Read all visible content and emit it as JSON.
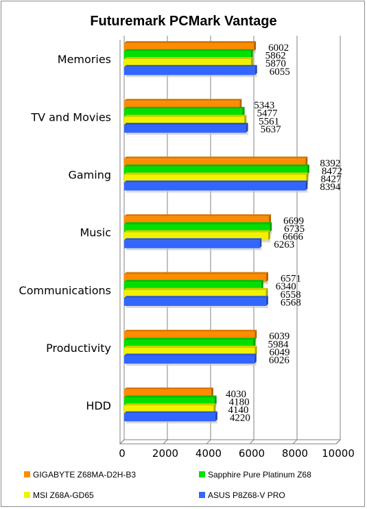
{
  "chart_data": {
    "type": "bar",
    "orientation": "horizontal",
    "title": "Futuremark PCMark Vantage",
    "xlim": [
      0,
      10000
    ],
    "x_ticks": [
      "0",
      "2000",
      "4000",
      "6000",
      "8000",
      "10000"
    ],
    "grid": true,
    "legend_position": "bottom",
    "categories": [
      "Memories",
      "TV and Movies",
      "Gaming",
      "Music",
      "Communications",
      "Productivity",
      "HDD"
    ],
    "series": [
      {
        "name": "GIGABYTE Z68MA-D2H-B3",
        "color": "#ff8c00",
        "values": [
          6002,
          5343,
          8392,
          6699,
          6571,
          6039,
          4030
        ]
      },
      {
        "name": "Sapphire Pure Platinum Z68",
        "color": "#00e000",
        "values": [
          5862,
          5477,
          8472,
          6735,
          6340,
          5984,
          4180
        ]
      },
      {
        "name": "MSI Z68A-GD65",
        "color": "#f2f200",
        "values": [
          5870,
          5561,
          8427,
          6666,
          6558,
          6049,
          4140
        ]
      },
      {
        "name": "ASUS P8Z68-V PRO",
        "color": "#3366ff",
        "values": [
          6055,
          5637,
          8394,
          6263,
          6568,
          6026,
          4220
        ]
      }
    ]
  }
}
